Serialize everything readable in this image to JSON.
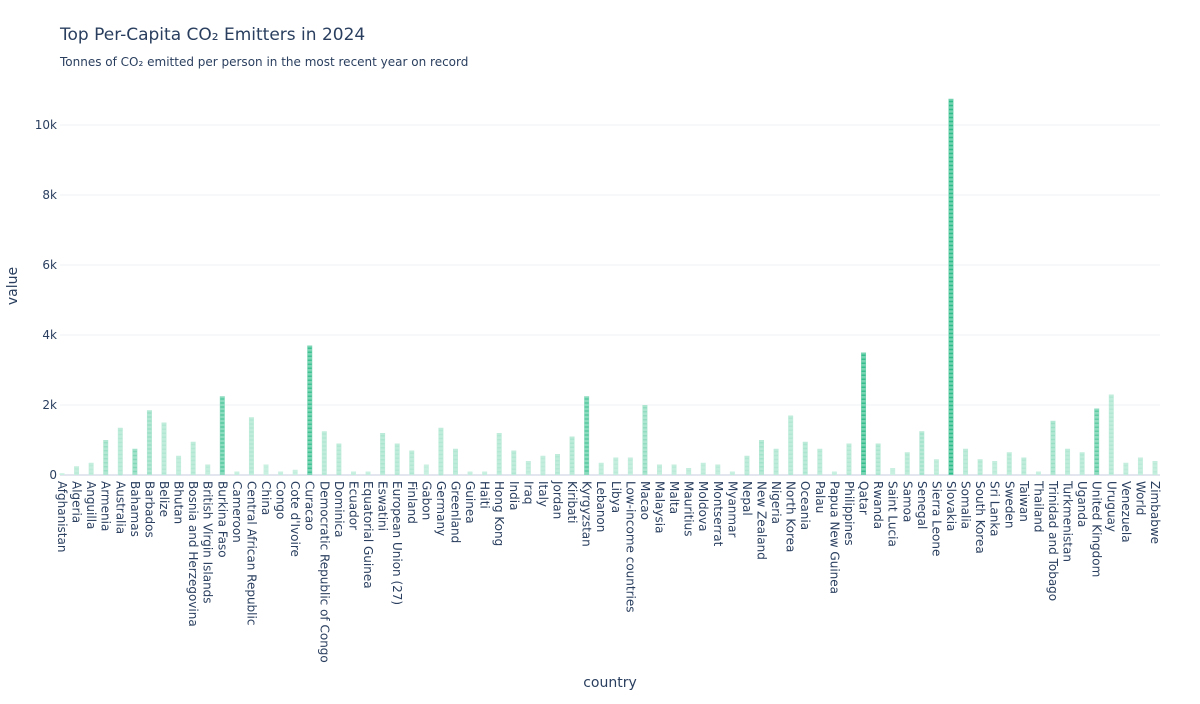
{
  "chart_data": {
    "type": "bar",
    "title": "Top Per-Capita CO₂ Emitters in 2024",
    "subtitle": "Tonnes of CO₂ emitted per person in the most recent year on record",
    "xlabel": "country",
    "ylabel": "value",
    "ylim": [
      0,
      10800
    ],
    "yticks": [
      0,
      2000,
      4000,
      6000,
      8000,
      10000
    ],
    "ytick_labels": [
      "0",
      "2k",
      "4k",
      "6k",
      "8k",
      "10k"
    ],
    "grid": true,
    "colors": {
      "light": "#d4f3e6",
      "dark": "#10b27a",
      "grid": "#eef1f6",
      "zero_line": "#e3e6ef"
    },
    "categories": [
      "Afghanistan",
      "Algeria",
      "Anguilla",
      "Armenia",
      "Australia",
      "Bahamas",
      "Barbados",
      "Belize",
      "Bhutan",
      "Bosnia and Herzegovina",
      "British Virgin Islands",
      "Burkina Faso",
      "Cameroon",
      "Central African Republic",
      "China",
      "Congo",
      "Cote d'Ivoire",
      "Curacao",
      "Democratic Republic of Congo",
      "Dominica",
      "Ecuador",
      "Equatorial Guinea",
      "Eswatini",
      "European Union (27)",
      "Finland",
      "Gabon",
      "Germany",
      "Greenland",
      "Guinea",
      "Haiti",
      "Hong Kong",
      "India",
      "Iraq",
      "Italy",
      "Jordan",
      "Kiribati",
      "Kyrgyzstan",
      "Lebanon",
      "Libya",
      "Low-income countries",
      "Macao",
      "Malaysia",
      "Malta",
      "Mauritius",
      "Moldova",
      "Montserrat",
      "Myanmar",
      "Nepal",
      "New Zealand",
      "Nigeria",
      "North Korea",
      "Oceania",
      "Palau",
      "Papua New Guinea",
      "Philippines",
      "Qatar",
      "Rwanda",
      "Saint Lucia",
      "Samoa",
      "Senegal",
      "Sierra Leone",
      "Slovakia",
      "Somalia",
      "South Korea",
      "Sri Lanka",
      "Sweden",
      "Taiwan",
      "Thailand",
      "Trinidad and Tobago",
      "Turkmenistan",
      "Uganda",
      "United Kingdom",
      "Uruguay",
      "Venezuela",
      "World",
      "Zimbabwe"
    ],
    "values": [
      50,
      250,
      350,
      1000,
      1350,
      750,
      1850,
      1500,
      550,
      950,
      300,
      2250,
      100,
      1650,
      300,
      100,
      150,
      3700,
      1250,
      900,
      100,
      100,
      1200,
      900,
      700,
      300,
      1350,
      750,
      100,
      100,
      1200,
      700,
      400,
      550,
      600,
      1100,
      2250,
      350,
      500,
      500,
      2000,
      300,
      300,
      200,
      350,
      300,
      100,
      550,
      1000,
      750,
      1700,
      950,
      750,
      100,
      900,
      3500,
      900,
      200,
      650,
      1250,
      450,
      10750,
      750,
      450,
      400,
      650,
      500,
      100,
      1550,
      750,
      650,
      1900,
      2300,
      350,
      500,
      400
    ],
    "intensity": [
      0.1,
      0.15,
      0.15,
      0.35,
      0.2,
      0.5,
      0.35,
      0.2,
      0.15,
      0.2,
      0.15,
      0.75,
      0.1,
      0.2,
      0.1,
      0.1,
      0.1,
      0.9,
      0.2,
      0.2,
      0.1,
      0.1,
      0.25,
      0.2,
      0.2,
      0.1,
      0.2,
      0.2,
      0.1,
      0.1,
      0.2,
      0.2,
      0.15,
      0.15,
      0.2,
      0.25,
      0.75,
      0.15,
      0.15,
      0.15,
      0.4,
      0.15,
      0.15,
      0.15,
      0.15,
      0.15,
      0.1,
      0.2,
      0.3,
      0.2,
      0.2,
      0.25,
      0.2,
      0.1,
      0.2,
      0.95,
      0.25,
      0.1,
      0.2,
      0.3,
      0.15,
      1.0,
      0.2,
      0.2,
      0.15,
      0.2,
      0.2,
      0.1,
      0.35,
      0.2,
      0.2,
      0.7,
      0.2,
      0.15,
      0.15,
      0.15
    ]
  }
}
